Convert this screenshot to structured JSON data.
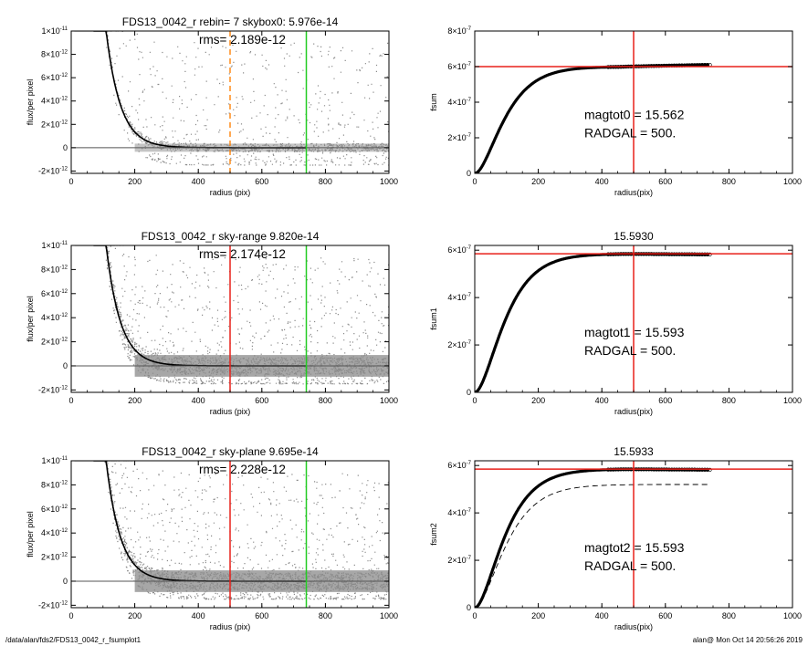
{
  "chart_data": [
    {
      "id": "L1",
      "type": "scatter",
      "title": "FDS13_0042_r rebin= 7    skybox0:  5.976e-14",
      "annotation": "rms= 2.189e-12",
      "xlabel": "radius (pix)",
      "ylabel": "flux/per pixel",
      "xlim": [
        0,
        1000
      ],
      "ylim": [
        -2.2e-12,
        1e-11
      ],
      "xticks": [
        0,
        200,
        400,
        600,
        800,
        1000
      ],
      "yticks": [
        {
          "v": 1e-11,
          "m": "1×10",
          "e": "-11"
        },
        {
          "v": 8e-12,
          "m": "8×10",
          "e": "-12"
        },
        {
          "v": 6e-12,
          "m": "6×10",
          "e": "-12"
        },
        {
          "v": 4e-12,
          "m": "4×10",
          "e": "-12"
        },
        {
          "v": 2e-12,
          "m": "2×10",
          "e": "-12"
        },
        {
          "v": 0,
          "m": "0",
          "e": ""
        },
        {
          "v": -2e-12,
          "m": "-2×10",
          "e": "-12"
        }
      ],
      "profile_scale": 1.15e-10,
      "profile_decay": 45,
      "vlines": [
        {
          "x": 500,
          "color": "#ff8c1a",
          "dashed": true
        },
        {
          "x": 740,
          "color": "#22cc22",
          "dashed": false
        }
      ],
      "scatter_seed": 11,
      "scatter_density": "low"
    },
    {
      "id": "R1",
      "type": "line",
      "title": "",
      "annotation_lines": [
        "magtot0 =  15.562",
        "RADGAL =    500."
      ],
      "xlabel": "radius(pix)",
      "ylabel": "fsum",
      "xlim": [
        0,
        1000
      ],
      "ylim": [
        0,
        8e-07
      ],
      "xticks": [
        0,
        200,
        400,
        600,
        800,
        1000
      ],
      "yticks": [
        {
          "v": 8e-07,
          "m": "8×10",
          "e": "-7"
        },
        {
          "v": 6e-07,
          "m": "6×10",
          "e": "-7"
        },
        {
          "v": 4e-07,
          "m": "4×10",
          "e": "-7"
        },
        {
          "v": 2e-07,
          "m": "2×10",
          "e": "-7"
        },
        {
          "v": 0,
          "m": "0",
          "e": ""
        }
      ],
      "curve_max": 6e-07,
      "curve_end": 6.1e-07,
      "curve_xmax": 740,
      "hline": 6e-07,
      "vline": 500,
      "dashed_max": null
    },
    {
      "id": "L2",
      "type": "scatter",
      "title": "FDS13_0042_r sky-range  9.820e-14",
      "annotation": "rms= 2.174e-12",
      "xlabel": "radius (pix)",
      "ylabel": "flux/per pixel",
      "xlim": [
        0,
        1000
      ],
      "ylim": [
        -2.2e-12,
        1e-11
      ],
      "xticks": [
        0,
        200,
        400,
        600,
        800,
        1000
      ],
      "yticks": [
        {
          "v": 1e-11,
          "m": "1×10",
          "e": "-11"
        },
        {
          "v": 8e-12,
          "m": "8×10",
          "e": "-12"
        },
        {
          "v": 6e-12,
          "m": "6×10",
          "e": "-12"
        },
        {
          "v": 4e-12,
          "m": "4×10",
          "e": "-12"
        },
        {
          "v": 2e-12,
          "m": "2×10",
          "e": "-12"
        },
        {
          "v": 0,
          "m": "0",
          "e": ""
        },
        {
          "v": -2e-12,
          "m": "-2×10",
          "e": "-12"
        }
      ],
      "profile_scale": 1.15e-10,
      "profile_decay": 45,
      "vlines": [
        {
          "x": 500,
          "color": "#e8201a",
          "dashed": false
        },
        {
          "x": 740,
          "color": "#22cc22",
          "dashed": false
        }
      ],
      "scatter_seed": 23,
      "scatter_density": "high"
    },
    {
      "id": "R2",
      "type": "line",
      "title": "15.5930",
      "annotation_lines": [
        "magtot1 =  15.593",
        "RADGAL =    500."
      ],
      "xlabel": "radius(pix)",
      "ylabel": "fsum1",
      "xlim": [
        0,
        1000
      ],
      "ylim": [
        0,
        6.2e-07
      ],
      "xticks": [
        0,
        200,
        400,
        600,
        800,
        1000
      ],
      "yticks": [
        {
          "v": 6e-07,
          "m": "6×10",
          "e": "-7"
        },
        {
          "v": 4e-07,
          "m": "4×10",
          "e": "-7"
        },
        {
          "v": 2e-07,
          "m": "2×10",
          "e": "-7"
        },
        {
          "v": 0,
          "m": "0",
          "e": ""
        }
      ],
      "curve_max": 5.85e-07,
      "curve_end": 5.82e-07,
      "curve_xmax": 740,
      "hline": 5.85e-07,
      "vline": 500,
      "dashed_max": null
    },
    {
      "id": "L3",
      "type": "scatter",
      "title": "FDS13_0042_r sky-plane  9.695e-14",
      "annotation": "rms= 2.228e-12",
      "xlabel": "radius (pix)",
      "ylabel": "flux/per pixel",
      "xlim": [
        0,
        1000
      ],
      "ylim": [
        -2.2e-12,
        1e-11
      ],
      "xticks": [
        0,
        200,
        400,
        600,
        800,
        1000
      ],
      "yticks": [
        {
          "v": 1e-11,
          "m": "1×10",
          "e": "-11"
        },
        {
          "v": 8e-12,
          "m": "8×10",
          "e": "-12"
        },
        {
          "v": 6e-12,
          "m": "6×10",
          "e": "-12"
        },
        {
          "v": 4e-12,
          "m": "4×10",
          "e": "-12"
        },
        {
          "v": 2e-12,
          "m": "2×10",
          "e": "-12"
        },
        {
          "v": 0,
          "m": "0",
          "e": ""
        },
        {
          "v": -2e-12,
          "m": "-2×10",
          "e": "-12"
        }
      ],
      "profile_scale": 1.15e-10,
      "profile_decay": 45,
      "vlines": [
        {
          "x": 500,
          "color": "#e8201a",
          "dashed": false
        },
        {
          "x": 740,
          "color": "#22cc22",
          "dashed": false
        }
      ],
      "scatter_seed": 37,
      "scatter_density": "high"
    },
    {
      "id": "R3",
      "type": "line",
      "title": "15.5933",
      "annotation_lines": [
        "magtot2 =  15.593",
        "RADGAL =    500."
      ],
      "xlabel": "radius(pix)",
      "ylabel": "fsum2",
      "xlim": [
        0,
        1000
      ],
      "ylim": [
        0,
        6.2e-07
      ],
      "xticks": [
        0,
        200,
        400,
        600,
        800,
        1000
      ],
      "yticks": [
        {
          "v": 6e-07,
          "m": "6×10",
          "e": "-7"
        },
        {
          "v": 4e-07,
          "m": "4×10",
          "e": "-7"
        },
        {
          "v": 2e-07,
          "m": "2×10",
          "e": "-7"
        },
        {
          "v": 0,
          "m": "0",
          "e": ""
        }
      ],
      "curve_max": 5.85e-07,
      "curve_end": 5.82e-07,
      "curve_xmax": 740,
      "hline": 5.85e-07,
      "vline": 500,
      "dashed_max": 5.2e-07
    }
  ],
  "footer": {
    "left": "/data/alan/fds2/FDS13_0042_r_fsumplot1",
    "right": "alan@  Mon Oct 14 20:56:26 2019"
  },
  "colors": {
    "axis": "#000000",
    "scatter": "#8a8a8a",
    "profile": "#000000",
    "hline": "#e8201a",
    "vline_red": "#e8201a",
    "green": "#22cc22",
    "orange": "#ff8c1a"
  }
}
